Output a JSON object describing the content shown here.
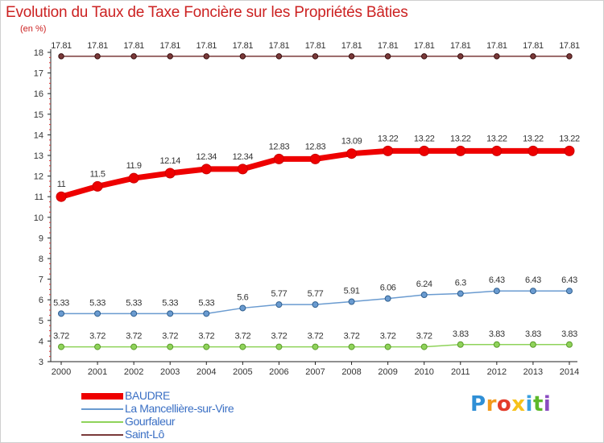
{
  "header": {
    "title": "Evolution du Taux de Taxe Foncière sur les Propriétés Bâties",
    "unit": "(en %)"
  },
  "logo": {
    "text": "Proxiti"
  },
  "chart_data": {
    "type": "line",
    "title": "Evolution du Taux de Taxe Foncière sur les Propriétés Bâties",
    "ylabel": "(en %)",
    "xlabel": "",
    "ylim": [
      3,
      18
    ],
    "yticks": [
      3,
      4,
      5,
      6,
      7,
      8,
      9,
      10,
      11,
      12,
      13,
      14,
      15,
      16,
      17,
      18
    ],
    "grid": false,
    "legend_position": "bottom-left",
    "x": [
      "2000",
      "2001",
      "2002",
      "2003",
      "2004",
      "2005",
      "2006",
      "2007",
      "2008",
      "2009",
      "2010",
      "2011",
      "2012",
      "2013",
      "2014"
    ],
    "series": [
      {
        "name": "BAUDRE",
        "color": "#ee0000",
        "values": [
          11,
          11.5,
          11.9,
          12.14,
          12.34,
          12.34,
          12.83,
          12.83,
          13.09,
          13.22,
          13.22,
          13.22,
          13.22,
          13.22,
          13.22
        ],
        "labels": [
          "11",
          "11.5",
          "11.9",
          "12.14",
          "12.34",
          "12.34",
          "12.83",
          "12.83",
          "13.09",
          "13.22",
          "13.22",
          "13.22",
          "13.22",
          "13.22",
          "13.22"
        ]
      },
      {
        "name": "La Mancellière-sur-Vire",
        "color": "#6a9bd0",
        "values": [
          5.33,
          5.33,
          5.33,
          5.33,
          5.33,
          5.6,
          5.77,
          5.77,
          5.91,
          6.06,
          6.24,
          6.3,
          6.43,
          6.43,
          6.43
        ],
        "labels": [
          "5.33",
          "5.33",
          "5.33",
          "5.33",
          "5.33",
          "5.6",
          "5.77",
          "5.77",
          "5.91",
          "6.06",
          "6.24",
          "6.3",
          "6.43",
          "6.43",
          "6.43"
        ]
      },
      {
        "name": "Gourfaleur",
        "color": "#8fd35a",
        "values": [
          3.72,
          3.72,
          3.72,
          3.72,
          3.72,
          3.72,
          3.72,
          3.72,
          3.72,
          3.72,
          3.72,
          3.83,
          3.83,
          3.83,
          3.83
        ],
        "labels": [
          "3.72",
          "3.72",
          "3.72",
          "3.72",
          "3.72",
          "3.72",
          "3.72",
          "3.72",
          "3.72",
          "3.72",
          "3.72",
          "3.83",
          "3.83",
          "3.83",
          "3.83"
        ]
      },
      {
        "name": "Saint-Lô",
        "color": "#7a3a3a",
        "values": [
          17.81,
          17.81,
          17.81,
          17.81,
          17.81,
          17.81,
          17.81,
          17.81,
          17.81,
          17.81,
          17.81,
          17.81,
          17.81,
          17.81,
          17.81
        ],
        "labels": [
          "17.81",
          "17.81",
          "17.81",
          "17.81",
          "17.81",
          "17.81",
          "17.81",
          "17.81",
          "17.81",
          "17.81",
          "17.81",
          "17.81",
          "17.81",
          "17.81",
          "17.81"
        ]
      }
    ]
  }
}
